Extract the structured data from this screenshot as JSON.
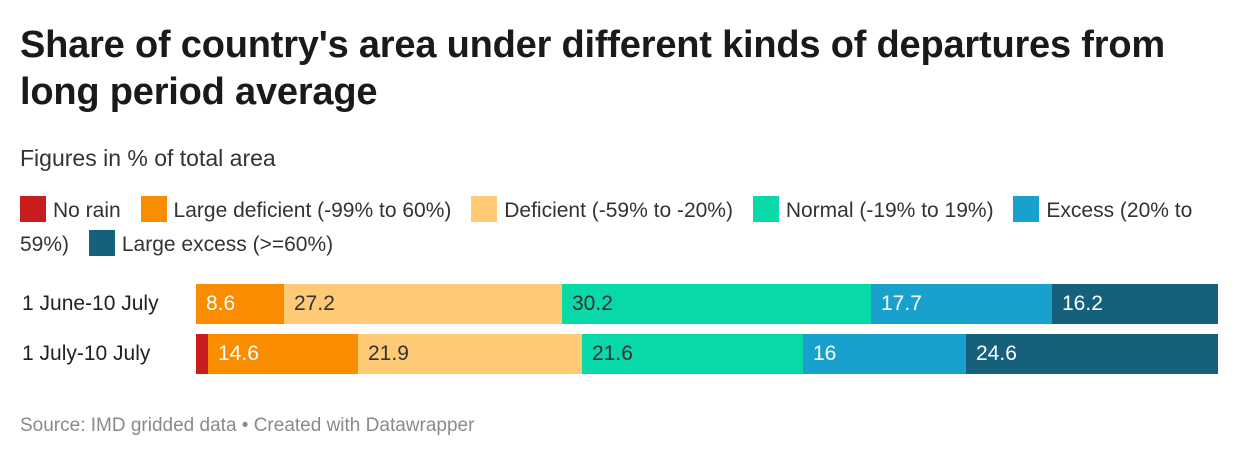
{
  "title": "Share of country's area under different kinds of departures from long period average",
  "subtitle": "Figures in % of total area",
  "source": "Source: IMD gridded data • Created with Datawrapper",
  "chart_data": {
    "type": "bar",
    "orientation": "horizontal",
    "stacked": true,
    "xlim": [
      0,
      100
    ],
    "categories": [
      "1 June-10 July",
      "1 July-10 July"
    ],
    "series": [
      {
        "name": "No rain",
        "color": "#c71e1d",
        "values": [
          0,
          1.2
        ],
        "labels": [
          "",
          ""
        ]
      },
      {
        "name": "Large deficient (-99% to 60%)",
        "color": "#fa8c00",
        "values": [
          8.6,
          14.6
        ],
        "labels": [
          "8.6",
          "14.6"
        ]
      },
      {
        "name": "Deficient (-59% to -20%)",
        "color": "#ffca76",
        "values": [
          27.2,
          21.9
        ],
        "labels": [
          "27.2",
          "21.9"
        ]
      },
      {
        "name": "Normal (-19% to 19%)",
        "color": "#09d9a8",
        "values": [
          30.2,
          21.6
        ],
        "labels": [
          "30.2",
          "21.6"
        ]
      },
      {
        "name": "Excess (20% to 59%)",
        "color": "#18a1cd",
        "values": [
          17.7,
          16
        ],
        "labels": [
          "17.7",
          "16"
        ]
      },
      {
        "name": "Large excess (>=60%)",
        "color": "#15607a",
        "values": [
          16.2,
          24.6
        ],
        "labels": [
          "16.2",
          "24.6"
        ]
      }
    ],
    "label_colors": [
      "#ffffff",
      "#ffffff",
      "#333333",
      "#333333",
      "#ffffff",
      "#ffffff"
    ]
  }
}
